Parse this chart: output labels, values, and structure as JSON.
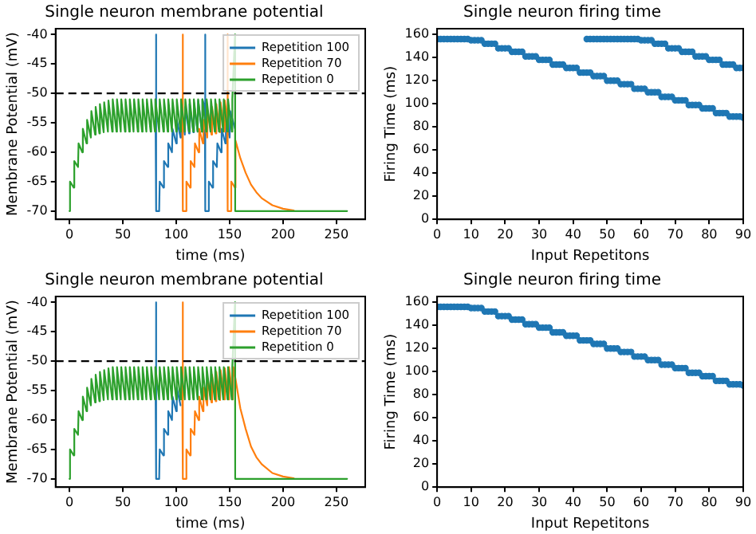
{
  "chart_data": [
    {
      "type": "line",
      "title": "Single neuron membrane potential",
      "xlabel": "time (ms)",
      "ylabel": "Membrane Potential (mV)",
      "xlim": [
        -13,
        277
      ],
      "xticks": [
        0,
        50,
        100,
        150,
        200,
        250
      ],
      "ylim": [
        -71.4,
        -39
      ],
      "yticks": [
        -70,
        -65,
        -60,
        -55,
        -50,
        -45,
        -40
      ],
      "legend": "top right",
      "ref_lines": [
        {
          "axis": "y",
          "value": -50,
          "color": "#000000",
          "line_style": "dashed"
        }
      ],
      "series": [
        {
          "name": "Repetition 100",
          "color": "#1f77b4",
          "x": [
            80.5,
            81,
            81.3,
            84,
            84.5,
            88,
            88.5,
            92,
            92.5,
            96,
            96.5,
            100,
            100.5,
            104,
            104.5,
            108,
            108.5,
            112,
            112.5,
            116,
            116.5,
            120,
            120.5,
            124,
            124.5,
            126.8,
            127,
            127.3,
            130,
            130.5,
            134,
            134.5,
            138,
            138.5,
            142,
            142.5,
            146,
            146.5,
            150,
            150.5,
            155
          ],
          "values": [
            -51,
            -40,
            -70,
            -70,
            -65,
            -66,
            -61.5,
            -62.5,
            -58.5,
            -60,
            -56,
            -58.5,
            -54.5,
            -57.5,
            -53,
            -57,
            -52.3,
            -56.8,
            -51.8,
            -56.6,
            -51.5,
            -56.5,
            -51.2,
            -56.5,
            -51,
            -52.5,
            -40,
            -70,
            -70,
            -65,
            -66,
            -61.5,
            -62.5,
            -58.5,
            -60,
            -56,
            -58.5,
            -54.5,
            -57.5,
            -53,
            -56
          ]
        },
        {
          "name": "Repetition 70",
          "color": "#ff7f0e",
          "x": [
            105.5,
            106,
            106.3,
            109,
            109.5,
            113,
            113.5,
            117,
            117.5,
            121,
            121.5,
            125,
            125.5,
            129,
            129.5,
            133,
            133.5,
            137,
            137.5,
            141,
            141.5,
            145,
            145.5,
            147.8,
            148,
            148.3,
            151,
            151.5,
            155,
            155.5,
            160,
            165,
            170,
            175,
            180,
            190,
            200,
            210
          ],
          "values": [
            -51,
            -40,
            -70,
            -70,
            -65,
            -66,
            -61.5,
            -62.5,
            -58.5,
            -60,
            -56,
            -58.5,
            -54.5,
            -57.5,
            -53,
            -57,
            -52.3,
            -56.8,
            -51.8,
            -56.6,
            -51.5,
            -56.5,
            -51.2,
            -54.5,
            -40,
            -70,
            -70,
            -65,
            -66,
            -58,
            -61,
            -63.5,
            -65.5,
            -66.8,
            -67.8,
            -69,
            -69.6,
            -69.9
          ]
        },
        {
          "name": "Repetition 0",
          "color": "#2ca02c",
          "x": [
            0,
            0.5,
            4,
            4.5,
            8,
            8.5,
            12,
            12.5,
            16,
            16.5,
            20,
            20.5,
            24,
            24.5,
            28,
            28.5,
            32,
            32.5,
            36,
            36.5,
            40,
            40.5,
            44,
            44.5,
            48,
            48.5,
            52,
            52.5,
            56,
            56.5,
            60,
            60.5,
            64,
            64.5,
            68,
            68.5,
            72,
            72.5,
            76,
            76.5,
            80,
            80.5,
            84,
            84.5,
            88,
            88.5,
            92,
            92.5,
            96,
            96.5,
            100,
            100.5,
            104,
            104.5,
            108,
            108.5,
            112,
            112.5,
            116,
            116.5,
            120,
            120.5,
            124,
            124.5,
            128,
            128.5,
            132,
            132.5,
            136,
            136.5,
            140,
            140.5,
            144,
            144.5,
            148,
            148.5,
            152,
            152.5,
            155,
            155.2,
            260
          ],
          "values": [
            -70,
            -65,
            -66,
            -61.5,
            -62.5,
            -58.5,
            -60,
            -56,
            -58.5,
            -54.5,
            -57.5,
            -53,
            -57,
            -52.3,
            -56.8,
            -51.8,
            -56.6,
            -51.5,
            -56.5,
            -51.2,
            -56.5,
            -51,
            -56.5,
            -51,
            -56.5,
            -51,
            -56.5,
            -51,
            -56.5,
            -51,
            -56.5,
            -51,
            -56.5,
            -51,
            -56.5,
            -51,
            -56.5,
            -51,
            -56.5,
            -51,
            -56.5,
            -51,
            -56.5,
            -51,
            -56.5,
            -51,
            -56.5,
            -51,
            -56.5,
            -51,
            -56.5,
            -51,
            -56.5,
            -51,
            -56.5,
            -51,
            -56.5,
            -51,
            -56.5,
            -51,
            -56.5,
            -51,
            -56.5,
            -51,
            -56.5,
            -51,
            -56.5,
            -51,
            -56.5,
            -51,
            -56.5,
            -51,
            -56.5,
            -51,
            -56.5,
            -51,
            -56.5,
            -51,
            -40,
            -70,
            -70
          ]
        }
      ]
    },
    {
      "type": "scatter",
      "title": "Single neuron firing time",
      "xlabel": "Input Repetitons",
      "ylabel": "Firing Time (ms)",
      "xlim": [
        0,
        90
      ],
      "xticks": [
        0,
        10,
        20,
        30,
        40,
        50,
        60,
        70,
        80,
        90
      ],
      "ylim": [
        0,
        165
      ],
      "yticks": [
        0,
        20,
        40,
        60,
        80,
        100,
        120,
        140,
        160
      ],
      "marker": "circle",
      "series": [
        {
          "color": "#1f77b4",
          "x": [
            0,
            1,
            2,
            3,
            4,
            5,
            6,
            7,
            8,
            9,
            10,
            11,
            12,
            13,
            14,
            15,
            16,
            17,
            18,
            19,
            20,
            21,
            22,
            23,
            24,
            25,
            26,
            27,
            28,
            29,
            30,
            31,
            32,
            33,
            34,
            35,
            36,
            37,
            38,
            39,
            40,
            41,
            42,
            43,
            44,
            45,
            46,
            47,
            48,
            49,
            50,
            51,
            52,
            53,
            54,
            55,
            56,
            57,
            58,
            59,
            60,
            61,
            62,
            63,
            64,
            65,
            66,
            67,
            68,
            69,
            70,
            71,
            72,
            73,
            74,
            75,
            76,
            77,
            78,
            79,
            80,
            81,
            82,
            83,
            84,
            85,
            86,
            87,
            88,
            89,
            90
          ],
          "values": [
            156,
            156,
            156,
            156,
            156,
            156,
            156,
            156,
            156,
            156,
            155,
            155,
            155,
            155,
            152,
            152,
            152,
            152,
            148,
            148,
            148,
            148,
            145,
            145,
            145,
            145,
            141,
            141,
            141,
            141,
            138,
            138,
            138,
            138,
            134,
            134,
            134,
            134,
            131,
            131,
            131,
            131,
            127,
            127,
            127,
            127,
            124,
            124,
            124,
            124,
            120,
            120,
            120,
            120,
            117,
            117,
            117,
            117,
            113,
            113,
            113,
            113,
            110,
            110,
            110,
            110,
            106,
            106,
            106,
            106,
            103,
            103,
            103,
            103,
            99,
            99,
            99,
            99,
            96,
            96,
            96,
            96,
            92,
            92,
            92,
            92,
            89,
            89,
            89,
            89,
            88
          ]
        },
        {
          "color": "#1f77b4",
          "x": [
            44,
            45,
            46,
            47,
            48,
            49,
            50,
            51,
            52,
            53,
            54,
            55,
            56,
            57,
            58,
            59,
            60,
            61,
            62,
            63,
            64,
            65,
            66,
            67,
            68,
            69,
            70,
            71,
            72,
            73,
            74,
            75,
            76,
            77,
            78,
            79,
            80,
            81,
            82,
            83,
            84,
            85,
            86,
            87,
            88,
            89,
            90
          ],
          "values": [
            156,
            156,
            156,
            156,
            156,
            156,
            156,
            156,
            156,
            156,
            156,
            156,
            156,
            156,
            156,
            156,
            155,
            155,
            155,
            155,
            152,
            152,
            152,
            152,
            148,
            148,
            148,
            148,
            145,
            145,
            145,
            145,
            141,
            141,
            141,
            141,
            138,
            138,
            138,
            138,
            134,
            134,
            134,
            134,
            131,
            131,
            131
          ]
        }
      ]
    },
    {
      "type": "line",
      "title": "Single neuron membrane potential",
      "xlabel": "time (ms)",
      "ylabel": "Membrane Potential (mV)",
      "xlim": [
        -13,
        277
      ],
      "xticks": [
        0,
        50,
        100,
        150,
        200,
        250
      ],
      "ylim": [
        -71.4,
        -39
      ],
      "yticks": [
        -70,
        -65,
        -60,
        -55,
        -50,
        -45,
        -40
      ],
      "legend": "top right",
      "ref_lines": [
        {
          "axis": "y",
          "value": -50,
          "color": "#000000",
          "line_style": "dashed"
        }
      ],
      "series": [
        {
          "name": "Repetition 100",
          "color": "#1f77b4",
          "x": [
            80.5,
            81,
            81.3,
            84,
            84.5,
            88,
            88.5,
            92,
            92.5,
            96,
            96.5,
            100,
            100.5,
            104
          ],
          "values": [
            -51,
            -40,
            -70,
            -70,
            -65,
            -66,
            -61.5,
            -62.5,
            -58.5,
            -60,
            -56,
            -58.5,
            -54.5,
            -57.5
          ]
        },
        {
          "name": "Repetition 70",
          "color": "#ff7f0e",
          "x": [
            105.5,
            106,
            106.3,
            109,
            109.5,
            113,
            113.5,
            117,
            117.5,
            121,
            121.5,
            125,
            125.5,
            129,
            129.5,
            133,
            133.5,
            137,
            137.5,
            141,
            141.5,
            145,
            145.5,
            149,
            149.5,
            153,
            153.5,
            155.5,
            160,
            165,
            170,
            175,
            180,
            190,
            200,
            210
          ],
          "values": [
            -51,
            -40,
            -70,
            -70,
            -65,
            -66,
            -61.5,
            -62.5,
            -58.5,
            -60,
            -56,
            -58.5,
            -54.5,
            -57.5,
            -53,
            -57,
            -52.3,
            -56.8,
            -51.8,
            -56.6,
            -51.5,
            -56.5,
            -51.2,
            -56.5,
            -51,
            -56.5,
            -51,
            -53,
            -58,
            -61.5,
            -64.5,
            -66.3,
            -67.5,
            -69,
            -69.6,
            -69.9
          ]
        },
        {
          "name": "Repetition 0",
          "color": "#2ca02c",
          "x": [
            0,
            0.5,
            4,
            4.5,
            8,
            8.5,
            12,
            12.5,
            16,
            16.5,
            20,
            20.5,
            24,
            24.5,
            28,
            28.5,
            32,
            32.5,
            36,
            36.5,
            40,
            40.5,
            44,
            44.5,
            48,
            48.5,
            52,
            52.5,
            56,
            56.5,
            60,
            60.5,
            64,
            64.5,
            68,
            68.5,
            72,
            72.5,
            76,
            76.5,
            80,
            80.5,
            84,
            84.5,
            88,
            88.5,
            92,
            92.5,
            96,
            96.5,
            100,
            100.5,
            104,
            104.5,
            108,
            108.5,
            112,
            112.5,
            116,
            116.5,
            120,
            120.5,
            124,
            124.5,
            128,
            128.5,
            132,
            132.5,
            136,
            136.5,
            140,
            140.5,
            144,
            144.5,
            148,
            148.5,
            152,
            152.5,
            155,
            155.2,
            260
          ],
          "values": [
            -70,
            -65,
            -66,
            -61.5,
            -62.5,
            -58.5,
            -60,
            -56,
            -58.5,
            -54.5,
            -57.5,
            -53,
            -57,
            -52.3,
            -56.8,
            -51.8,
            -56.6,
            -51.5,
            -56.5,
            -51.2,
            -56.5,
            -51,
            -56.5,
            -51,
            -56.5,
            -51,
            -56.5,
            -51,
            -56.5,
            -51,
            -56.5,
            -51,
            -56.5,
            -51,
            -56.5,
            -51,
            -56.5,
            -51,
            -56.5,
            -51,
            -56.5,
            -51,
            -56.5,
            -51,
            -56.5,
            -51,
            -56.5,
            -51,
            -56.5,
            -51,
            -56.5,
            -51,
            -56.5,
            -51,
            -56.5,
            -51,
            -56.5,
            -51,
            -56.5,
            -51,
            -56.5,
            -51,
            -56.5,
            -51,
            -56.5,
            -51,
            -56.5,
            -51,
            -56.5,
            -51,
            -56.5,
            -51,
            -56.5,
            -51,
            -56.5,
            -51,
            -56.5,
            -51,
            -40,
            -70,
            -70
          ]
        }
      ]
    },
    {
      "type": "scatter",
      "title": "Single neuron firing time",
      "xlabel": "Input Repetitons",
      "ylabel": "Firing Time (ms)",
      "xlim": [
        0,
        90
      ],
      "xticks": [
        0,
        10,
        20,
        30,
        40,
        50,
        60,
        70,
        80,
        90
      ],
      "ylim": [
        0,
        165
      ],
      "yticks": [
        0,
        20,
        40,
        60,
        80,
        100,
        120,
        140,
        160
      ],
      "marker": "circle",
      "series": [
        {
          "color": "#1f77b4",
          "x": [
            0,
            1,
            2,
            3,
            4,
            5,
            6,
            7,
            8,
            9,
            10,
            11,
            12,
            13,
            14,
            15,
            16,
            17,
            18,
            19,
            20,
            21,
            22,
            23,
            24,
            25,
            26,
            27,
            28,
            29,
            30,
            31,
            32,
            33,
            34,
            35,
            36,
            37,
            38,
            39,
            40,
            41,
            42,
            43,
            44,
            45,
            46,
            47,
            48,
            49,
            50,
            51,
            52,
            53,
            54,
            55,
            56,
            57,
            58,
            59,
            60,
            61,
            62,
            63,
            64,
            65,
            66,
            67,
            68,
            69,
            70,
            71,
            72,
            73,
            74,
            75,
            76,
            77,
            78,
            79,
            80,
            81,
            82,
            83,
            84,
            85,
            86,
            87,
            88,
            89,
            90
          ],
          "values": [
            156,
            156,
            156,
            156,
            156,
            156,
            156,
            156,
            156,
            156,
            155,
            155,
            155,
            155,
            152,
            152,
            152,
            152,
            148,
            148,
            148,
            148,
            145,
            145,
            145,
            145,
            141,
            141,
            141,
            141,
            138,
            138,
            138,
            138,
            134,
            134,
            134,
            134,
            131,
            131,
            131,
            131,
            127,
            127,
            127,
            127,
            124,
            124,
            124,
            124,
            120,
            120,
            120,
            120,
            117,
            117,
            117,
            117,
            113,
            113,
            113,
            113,
            110,
            110,
            110,
            110,
            106,
            106,
            106,
            106,
            103,
            103,
            103,
            103,
            99,
            99,
            99,
            99,
            96,
            96,
            96,
            96,
            92,
            92,
            92,
            92,
            89,
            89,
            89,
            89,
            88
          ]
        }
      ]
    }
  ]
}
